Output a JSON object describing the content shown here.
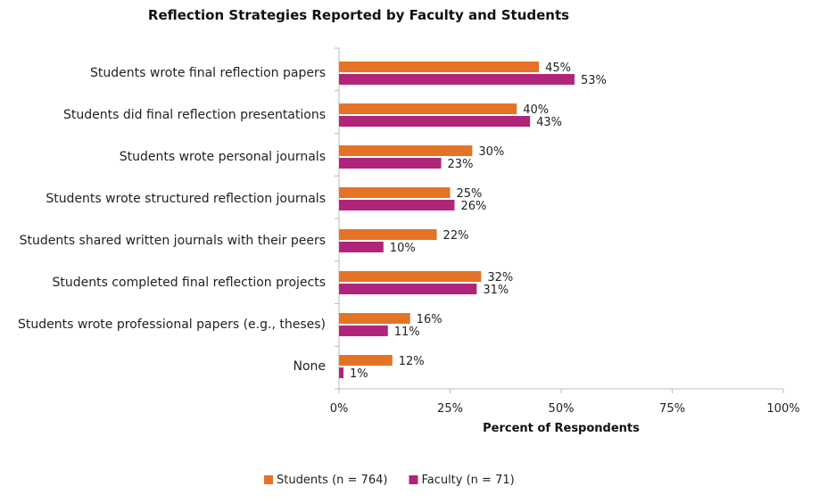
{
  "chart_data": {
    "type": "bar",
    "orientation": "horizontal",
    "title": "Reflection Strategies Reported by Faculty and Students",
    "xlabel": "Percent of Respondents",
    "ylabel": "",
    "xlim": [
      0,
      100
    ],
    "ticks": [
      "0%",
      "25%",
      "50%",
      "75%",
      "100%"
    ],
    "tick_values": [
      0,
      25,
      50,
      75,
      100
    ],
    "grid": false,
    "legend_position": "bottom",
    "categories": [
      "Students wrote final reflection papers",
      "Students did final reflection presentations",
      "Students wrote personal journals",
      "Students wrote structured reflection journals",
      "Students shared written journals with their peers",
      "Students completed final reflection projects",
      "Students wrote professional papers (e.g., theses)",
      "None"
    ],
    "series": [
      {
        "name": "Students (n = 764)",
        "color": "#e57325",
        "values": [
          45,
          40,
          30,
          25,
          22,
          32,
          16,
          12
        ],
        "labels": [
          "45%",
          "40%",
          "30%",
          "25%",
          "22%",
          "32%",
          "16%",
          "12%"
        ]
      },
      {
        "name": "Faculty (n = 71)",
        "color": "#b0257a",
        "values": [
          53,
          43,
          23,
          26,
          10,
          31,
          11,
          1
        ],
        "labels": [
          "53%",
          "43%",
          "23%",
          "26%",
          "10%",
          "31%",
          "11%",
          "1%"
        ]
      }
    ]
  }
}
